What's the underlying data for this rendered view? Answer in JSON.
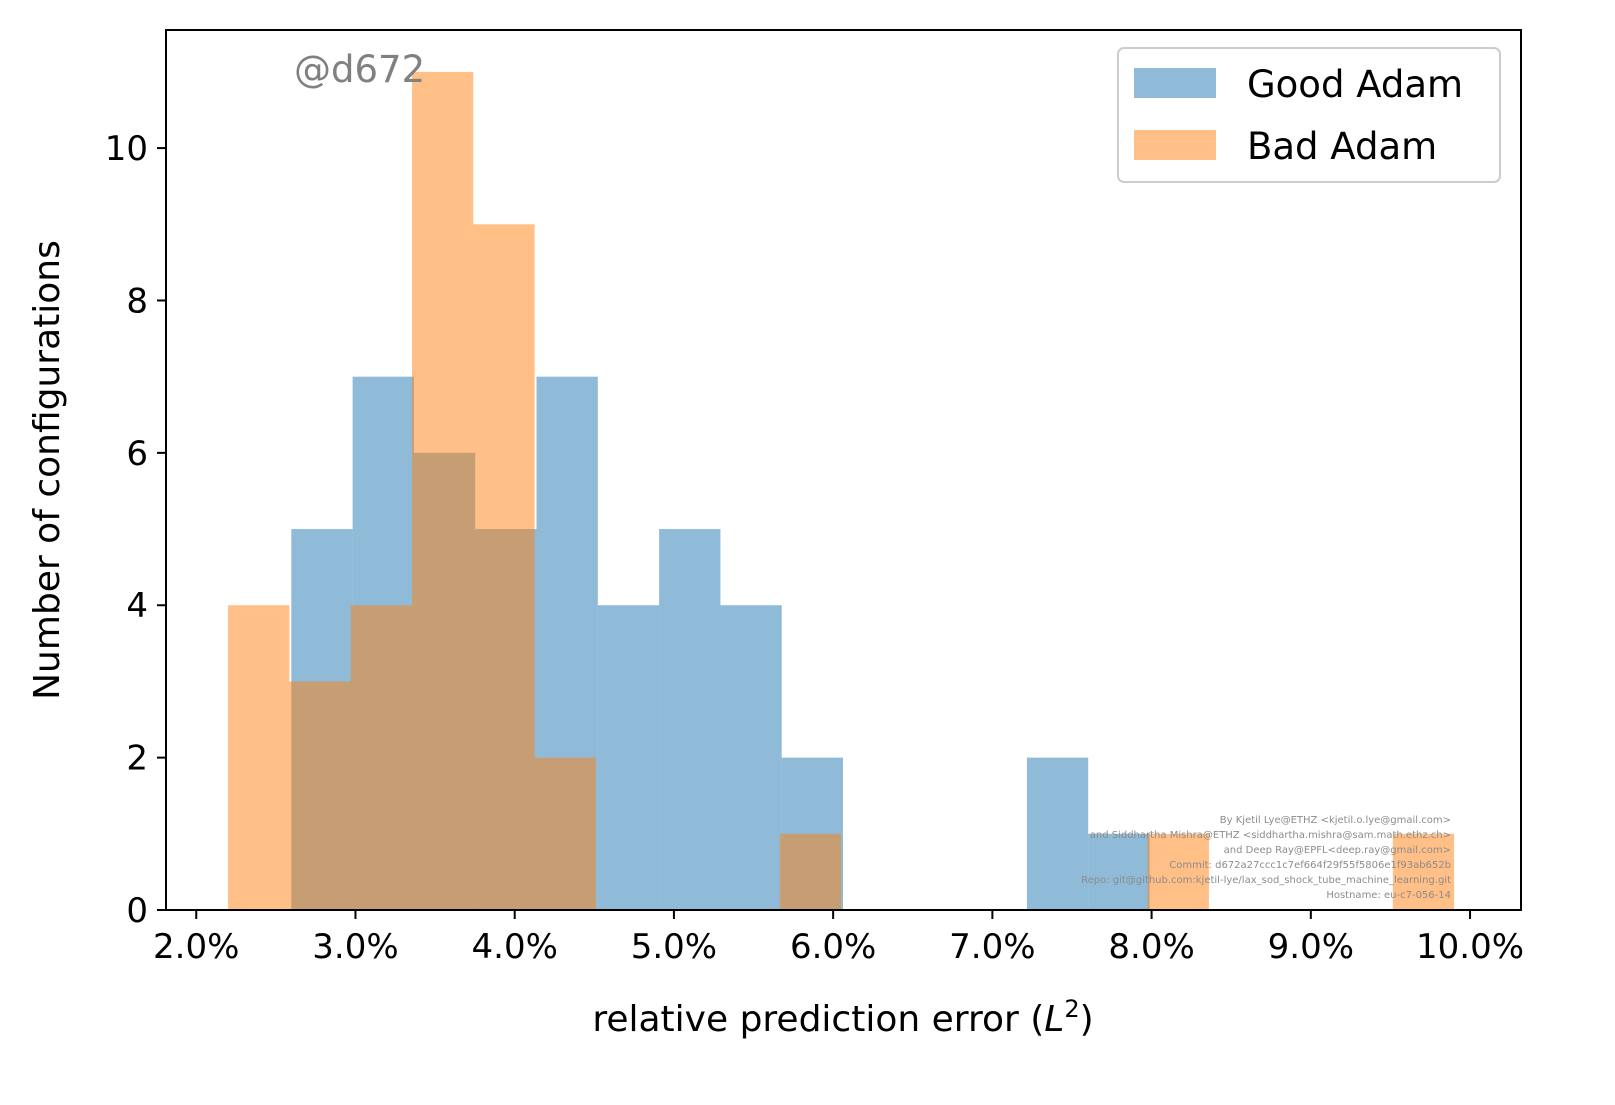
{
  "chart_data": {
    "type": "bar",
    "subtype": "overlaid-histogram",
    "title": "",
    "xlabel": "relative prediction error (L²)",
    "xlabel_parts": {
      "text": "relative prediction error (",
      "symbol": "L",
      "superscript": "2",
      "close": ")"
    },
    "ylabel": "Number of configurations",
    "xlim": [
      0.0181,
      0.1032
    ],
    "ylim": [
      0,
      11.55
    ],
    "xticks": [
      0.02,
      0.03,
      0.04,
      0.05,
      0.06,
      0.07,
      0.08,
      0.09,
      0.1
    ],
    "xtick_labels": [
      "2.0%",
      "3.0%",
      "4.0%",
      "5.0%",
      "6.0%",
      "7.0%",
      "8.0%",
      "9.0%",
      "10.0%"
    ],
    "yticks": [
      0,
      2,
      4,
      6,
      8,
      10
    ],
    "ytick_labels": [
      "0",
      "2",
      "4",
      "6",
      "8",
      "10"
    ],
    "grid": false,
    "legend_position": "top-right",
    "series": [
      {
        "name": "Good Adam",
        "color": "#1f77b4",
        "alpha": 0.5,
        "bin_edges": [
          0.02597,
          0.02982,
          0.03367,
          0.03752,
          0.04137,
          0.04522,
          0.04907,
          0.05292,
          0.05677,
          0.06062,
          0.06447,
          0.06832,
          0.07217,
          0.07602,
          0.07987
        ],
        "counts": [
          5,
          7,
          6,
          5,
          7,
          4,
          5,
          4,
          2,
          0,
          0,
          0,
          2,
          1
        ]
      },
      {
        "name": "Bad Adam",
        "color": "#ff7f0e",
        "alpha": 0.5,
        "bin_edges": [
          0.022,
          0.02585,
          0.0297,
          0.03355,
          0.0374,
          0.04125,
          0.0451,
          0.04895,
          0.0528,
          0.05665,
          0.0605,
          0.06435,
          0.0682,
          0.07205,
          0.0759,
          0.07975,
          0.0836,
          0.08745,
          0.0913,
          0.09515,
          0.099
        ],
        "counts": [
          4,
          3,
          4,
          11,
          9,
          2,
          0,
          0,
          0,
          1,
          0,
          0,
          0,
          0,
          0,
          1,
          0,
          0,
          0,
          1
        ]
      }
    ],
    "annotations": {
      "watermark": "@d672",
      "credits": [
        "By Kjetil Lye@ETHZ <kjetil.o.lye@gmail.com>",
        "and Siddhartha Mishra@ETHZ <siddhartha.mishra@sam.math.ethz.ch>",
        "and Deep Ray@EPFL<deep.ray@gmail.com>",
        "Commit: d672a27ccc1c7ef664f29f55f5806e1f93ab652b",
        "Repo: git@github.com:kjetil-lye/lax_sod_shock_tube_machine_learning.git",
        "Hostname: eu-c7-056-14"
      ]
    }
  }
}
